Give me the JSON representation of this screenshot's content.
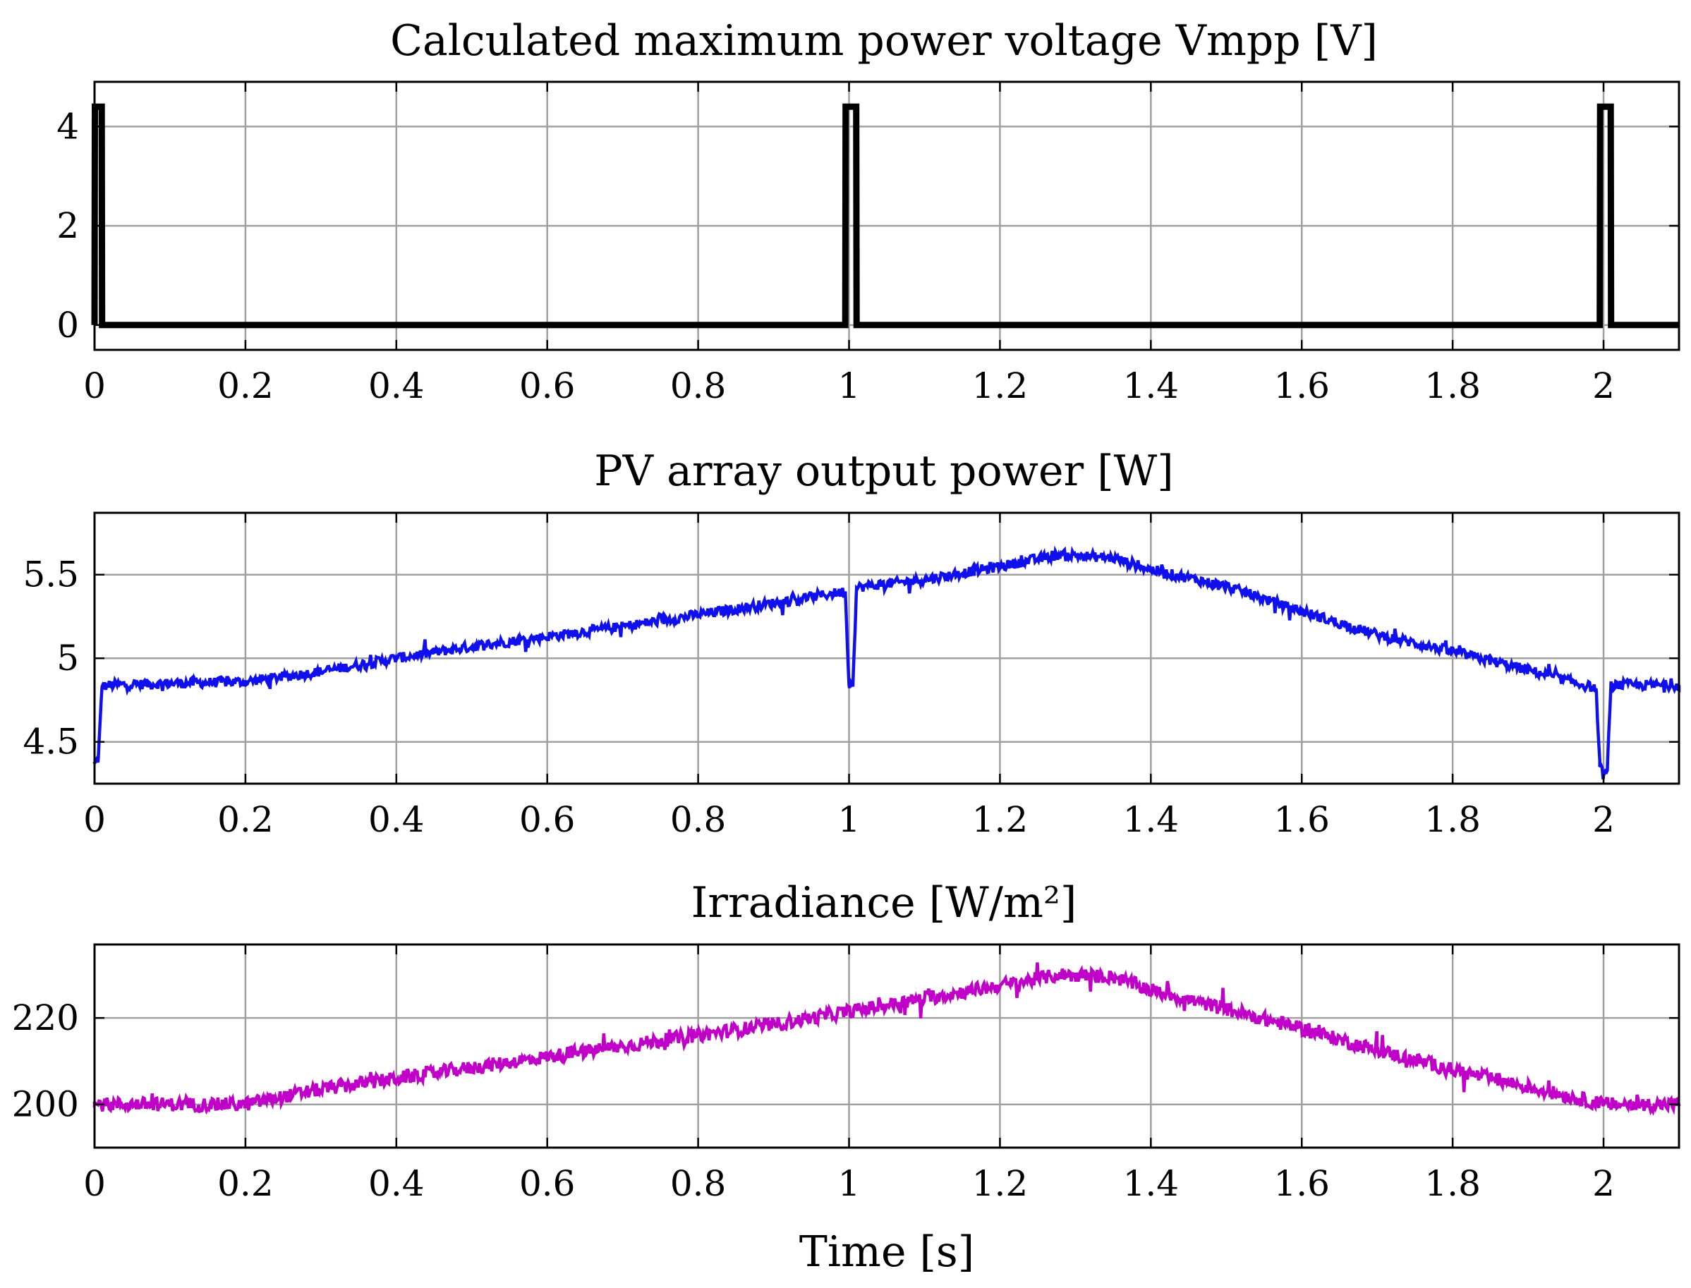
{
  "chart_data": [
    {
      "type": "line",
      "title": "Calculated maximum power voltage Vmpp [V]",
      "xlabel": "",
      "ylabel": "",
      "xlim": [
        0,
        2.1
      ],
      "ylim": [
        -0.5,
        4.9
      ],
      "grid": true,
      "xticks": [
        0,
        0.2,
        0.4,
        0.6,
        0.8,
        1,
        1.2,
        1.4,
        1.6,
        1.8,
        2
      ],
      "xtick_labels": [
        "0",
        "0.2",
        "0.4",
        "0.6",
        "0.8",
        "1",
        "1.2",
        "1.4",
        "1.6",
        "1.8",
        "2"
      ],
      "yticks": [
        0,
        2,
        4
      ],
      "ytick_labels": [
        "0",
        "2",
        "4"
      ],
      "series": [
        {
          "name": "Vmpp",
          "color": "#000000",
          "x": [
            0,
            0.0005,
            0.0095,
            0.01,
            0.995,
            0.9955,
            1.0095,
            1.01,
            1.995,
            1.9955,
            2.0095,
            2.01,
            2.1
          ],
          "y": [
            0,
            4.4,
            4.4,
            0,
            0,
            4.4,
            4.4,
            0,
            0,
            4.4,
            4.4,
            0,
            0
          ]
        }
      ]
    },
    {
      "type": "line",
      "title": "PV array output power [W]",
      "xlabel": "",
      "ylabel": "",
      "xlim": [
        0,
        2.1
      ],
      "ylim": [
        4.25,
        5.87
      ],
      "grid": true,
      "xticks": [
        0,
        0.2,
        0.4,
        0.6,
        0.8,
        1,
        1.2,
        1.4,
        1.6,
        1.8,
        2
      ],
      "xtick_labels": [
        "0",
        "0.2",
        "0.4",
        "0.6",
        "0.8",
        "1",
        "1.2",
        "1.4",
        "1.6",
        "1.8",
        "2"
      ],
      "yticks": [
        4.5,
        5,
        5.5
      ],
      "ytick_labels": [
        "4.5",
        "5",
        "5.5"
      ],
      "series": [
        {
          "name": "Power",
          "color": "#1010ee",
          "x": [
            0,
            0.005,
            0.01,
            0.02,
            0.1,
            0.2,
            0.3,
            0.4,
            0.5,
            0.6,
            0.7,
            0.8,
            0.9,
            0.995,
            1.0,
            1.005,
            1.01,
            1.02,
            1.1,
            1.2,
            1.28,
            1.35,
            1.4,
            1.5,
            1.6,
            1.7,
            1.8,
            1.9,
            1.99,
            1.995,
            2.0,
            2.005,
            2.01,
            2.02,
            2.1
          ],
          "y": [
            4.37,
            4.4,
            4.83,
            4.84,
            4.85,
            4.86,
            4.92,
            5.0,
            5.07,
            5.13,
            5.19,
            5.26,
            5.33,
            5.4,
            4.84,
            4.86,
            5.42,
            5.43,
            5.47,
            5.55,
            5.62,
            5.6,
            5.53,
            5.43,
            5.28,
            5.14,
            5.04,
            4.93,
            4.82,
            4.35,
            4.3,
            4.33,
            4.84,
            4.84,
            4.84
          ]
        }
      ]
    },
    {
      "type": "line",
      "title": "Irradiance [W/m²]",
      "xlabel": "Time [s]",
      "ylabel": "",
      "xlim": [
        0,
        2.1
      ],
      "ylim": [
        190,
        237
      ],
      "grid": true,
      "xticks": [
        0,
        0.2,
        0.4,
        0.6,
        0.8,
        1,
        1.2,
        1.4,
        1.6,
        1.8,
        2
      ],
      "xtick_labels": [
        "0",
        "0.2",
        "0.4",
        "0.6",
        "0.8",
        "1",
        "1.2",
        "1.4",
        "1.6",
        "1.8",
        "2"
      ],
      "yticks": [
        200,
        220
      ],
      "ytick_labels": [
        "200",
        "220"
      ],
      "series": [
        {
          "name": "Irradiance",
          "color": "#c000c8",
          "x": [
            0,
            0.1,
            0.2,
            0.3,
            0.4,
            0.5,
            0.6,
            0.7,
            0.8,
            0.9,
            1.0,
            1.1,
            1.2,
            1.28,
            1.35,
            1.4,
            1.5,
            1.6,
            1.7,
            1.8,
            1.9,
            2.0,
            2.1
          ],
          "y": [
            200,
            200,
            200,
            203.5,
            206,
            208.5,
            211,
            213.5,
            216,
            218.5,
            221.5,
            224.5,
            227.5,
            230,
            229.5,
            226.5,
            222,
            217.5,
            212.5,
            208,
            204,
            200,
            200
          ]
        }
      ]
    }
  ]
}
